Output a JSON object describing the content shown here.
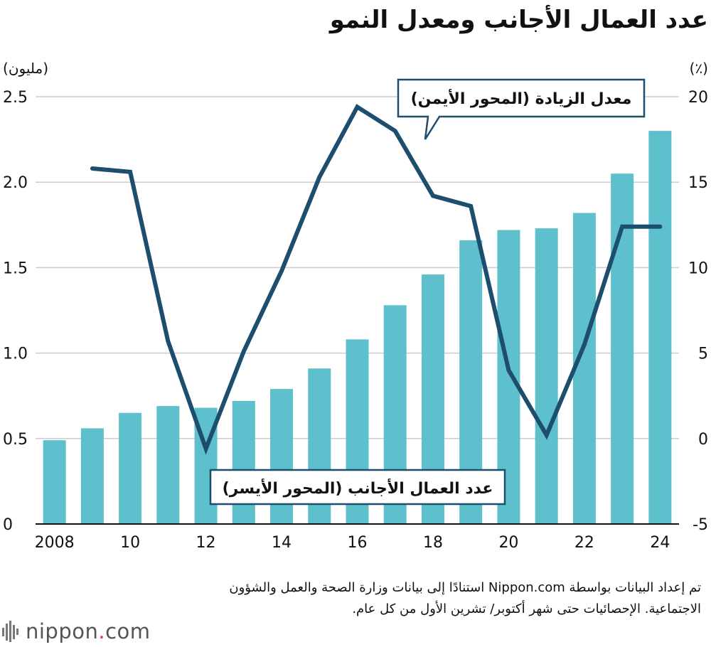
{
  "chart_data": {
    "type": "bar+line",
    "title": "عدد العمال الأجانب ومعدل النمو",
    "categories": [
      "2008",
      "2009",
      "2010",
      "2011",
      "2012",
      "2013",
      "2014",
      "2015",
      "2016",
      "2017",
      "2018",
      "2019",
      "2020",
      "2021",
      "2022",
      "2023",
      "2024"
    ],
    "x_tick_labels": [
      "2008",
      "10",
      "12",
      "14",
      "16",
      "18",
      "20",
      "22",
      "24"
    ],
    "series": [
      {
        "name": "عدد العمال الأجانب (المحور الأيسر)",
        "type": "bar",
        "axis": "left",
        "color": "#5ec0cc",
        "values": [
          0.49,
          0.56,
          0.65,
          0.69,
          0.68,
          0.72,
          0.79,
          0.91,
          1.08,
          1.28,
          1.46,
          1.66,
          1.72,
          1.73,
          1.82,
          2.05,
          2.3
        ]
      },
      {
        "name": "معدل الزيادة (المحور الأيمن)",
        "type": "line",
        "axis": "right",
        "color": "#1d4e6e",
        "values": [
          null,
          15.8,
          15.6,
          5.7,
          -0.6,
          5.1,
          9.8,
          15.3,
          19.4,
          18.0,
          14.2,
          13.6,
          4.0,
          0.2,
          5.5,
          12.4,
          12.4
        ]
      }
    ],
    "y_left": {
      "unit_label": "(مليون)",
      "ylim": [
        0,
        2.5
      ],
      "ticks": [
        "0",
        "0.5",
        "1.0",
        "1.5",
        "2.0",
        "2.5"
      ]
    },
    "y_right": {
      "unit_label": "(٪)",
      "ylim": [
        -5,
        20
      ],
      "ticks": [
        "-5",
        "0",
        "5",
        "10",
        "15",
        "20"
      ]
    },
    "grid": true,
    "annotations": {
      "line_callout": "معدل الزيادة (المحور الأيمن)",
      "bar_callout": "عدد العمال الأجانب (المحور الأيسر)"
    },
    "source_note": "تم إعداد البيانات بواسطة Nippon.com استنادًا إلى بيانات وزارة الصحة والعمل والشؤون الاجتماعية. الإحصائيات حتى شهر أكتوبر/ تشرين الأول من كل عام."
  },
  "brand": {
    "name_prefix": "nippon",
    "name_dot": ".",
    "name_suffix": "com"
  },
  "colors": {
    "bar": "#5ec0cc",
    "line": "#1d4e6e",
    "grid": "#cccccc",
    "axis": "#111111",
    "brand_dot": "#dd3333"
  }
}
